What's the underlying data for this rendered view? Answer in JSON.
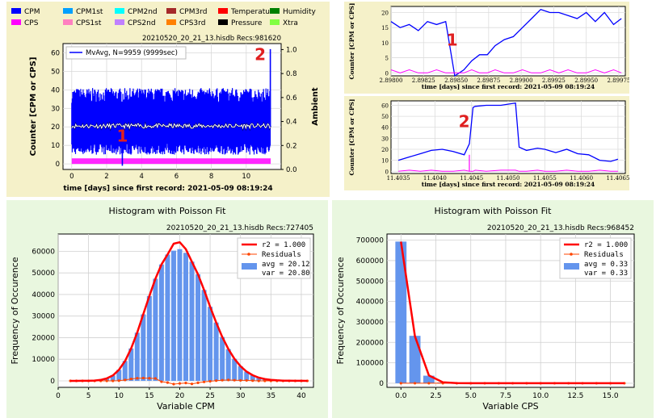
{
  "chart_data": [
    {
      "id": "time-series-main",
      "type": "line",
      "legend": [
        {
          "name": "CPM",
          "color": "#0000ff"
        },
        {
          "name": "CPM1st",
          "color": "#00a0ff"
        },
        {
          "name": "CPM2nd",
          "color": "#00ffff"
        },
        {
          "name": "CPM3rd",
          "color": "#a52a2a"
        },
        {
          "name": "Temperature",
          "color": "#ff0000"
        },
        {
          "name": "Humidity",
          "color": "#008000"
        },
        {
          "name": "CPS",
          "color": "#ff00ff"
        },
        {
          "name": "CPS1st",
          "color": "#ff80c0"
        },
        {
          "name": "CPS2nd",
          "color": "#c080ff"
        },
        {
          "name": "CPS3rd",
          "color": "#ff8000"
        },
        {
          "name": "Pressure",
          "color": "#000000"
        },
        {
          "name": "Xtra",
          "color": "#80ff40"
        }
      ],
      "subtitle": "20210520_20_21_13.hisdb   Recs:981620",
      "inner_legend": "MvAvg, N=9959 (9999sec)",
      "xlabel": "time [days] since first record: 2021-05-09 08:19:24",
      "ylabel": "Counter  [CPM or CPS]",
      "y2label": "Ambient",
      "xlim": [
        -0.5,
        12
      ],
      "ylim": [
        -3,
        65
      ],
      "y2lim": [
        0,
        1.05
      ],
      "xticks": [
        "0",
        "2",
        "4",
        "6",
        "8",
        "10"
      ],
      "yticks": [
        "0",
        "10",
        "20",
        "30",
        "40",
        "50",
        "60"
      ],
      "y2ticks": [
        "0.0",
        "0.2",
        "0.4",
        "0.6",
        "0.8",
        "1.0"
      ],
      "cpm_band": {
        "low": 5,
        "high": 37,
        "mean": 20
      },
      "moving_average": {
        "mean": 20.5
      },
      "cps_band": {
        "low": 0,
        "high": 3
      },
      "spikes": [
        {
          "x": 2.9,
          "y": -1
        },
        {
          "x": 11.38,
          "y": 62
        }
      ],
      "markers": [
        {
          "label": "1",
          "x": 2.9,
          "y": 12
        },
        {
          "label": "2",
          "x": 10.8,
          "y": 56
        }
      ],
      "colors": {
        "cpm": "#0000ff",
        "cps": "#ff00ff",
        "mvavg": "#ffffff",
        "marker": "#e02020"
      }
    },
    {
      "id": "zoom-1",
      "type": "line",
      "ylabel": "Counter  [CPM or CPS]",
      "xlabel": "time [days] since first record: 2021-05-09 08:19:24",
      "xlim": [
        2.898,
        2.8998
      ],
      "ylim": [
        -1,
        22
      ],
      "xticks": [
        "2.89800",
        "2.89825",
        "2.89850",
        "2.89875",
        "2.89900",
        "2.89925",
        "2.89950",
        "2.89975"
      ],
      "yticks": [
        "0",
        "5",
        "10",
        "15",
        "20"
      ],
      "cpm_x": [
        2.898,
        2.89807,
        2.89814,
        2.89821,
        2.89828,
        2.89835,
        2.89842,
        2.89849,
        2.89856,
        2.89862,
        2.89868,
        2.89874,
        2.8988,
        2.89887,
        2.89894,
        2.89901,
        2.89908,
        2.89915,
        2.89922,
        2.89929,
        2.89936,
        2.89943,
        2.8995,
        2.89957,
        2.89964,
        2.89971,
        2.89977
      ],
      "cpm_y": [
        17,
        15,
        16,
        14,
        17,
        16,
        17,
        -1,
        1,
        4,
        6,
        6,
        9,
        11,
        12,
        15,
        18,
        21,
        20,
        20,
        19,
        18,
        20,
        17,
        20,
        16,
        18
      ],
      "cps_y": [
        1,
        0,
        1,
        0,
        0,
        1,
        0,
        0,
        0,
        1,
        0,
        0,
        1,
        0,
        0,
        1,
        0,
        0,
        1,
        0,
        1,
        0,
        0,
        1,
        0,
        1,
        0
      ],
      "marker": {
        "label": "1",
        "x": 2.89847,
        "y": 9
      }
    },
    {
      "id": "zoom-2",
      "type": "line",
      "ylabel": "Counter  [CPM or CPS]",
      "xlabel": "time [days] since first record: 2021-05-09 08:19:24",
      "xlim": [
        11.4034,
        11.4066
      ],
      "ylim": [
        -2,
        64
      ],
      "xticks": [
        "11.4035",
        "11.4040",
        "11.4045",
        "11.4050",
        "11.4055",
        "11.4060",
        "11.4065"
      ],
      "yticks": [
        "0",
        "10",
        "20",
        "30",
        "40",
        "50",
        "60"
      ],
      "cpm_x": [
        11.4035,
        11.40365,
        11.4038,
        11.40395,
        11.4041,
        11.40425,
        11.4044,
        11.40447,
        11.40452,
        11.40455,
        11.4047,
        11.4049,
        11.4051,
        11.40515,
        11.40525,
        11.4054,
        11.4055,
        11.40565,
        11.4058,
        11.40595,
        11.4061,
        11.40625,
        11.4064,
        11.4065
      ],
      "cpm_y": [
        10,
        13,
        16,
        19,
        20,
        18,
        15,
        25,
        58,
        59,
        60,
        60,
        62,
        22,
        19,
        21,
        20,
        17,
        20,
        16,
        15,
        10,
        9,
        11
      ],
      "cps_y": [
        0,
        1,
        0,
        1,
        0,
        0,
        1,
        0,
        0,
        1,
        0,
        1,
        1,
        0,
        0,
        1,
        0,
        0,
        1,
        0,
        0,
        1,
        0,
        0
      ],
      "cps_spike": {
        "x": 11.40447,
        "y": 15
      },
      "marker": {
        "label": "2",
        "x": 11.4044,
        "y": 40
      }
    },
    {
      "id": "hist-cpm",
      "type": "bar",
      "title": "Histogram with Poisson Fit",
      "subtitle": "20210520_20_21_13.hisdb   Recs:727405",
      "xlabel": "Variable CPM",
      "ylabel": "Frequency of Occurence",
      "xlim": [
        0,
        42
      ],
      "ylim": [
        -3000,
        68000
      ],
      "xticks": [
        0,
        5,
        10,
        15,
        20,
        25,
        30,
        35,
        40
      ],
      "yticks": [
        0,
        10000,
        20000,
        30000,
        40000,
        50000,
        60000
      ],
      "x": [
        2,
        3,
        4,
        5,
        6,
        7,
        8,
        9,
        10,
        11,
        12,
        13,
        14,
        15,
        16,
        17,
        18,
        19,
        20,
        21,
        22,
        23,
        24,
        25,
        26,
        27,
        28,
        29,
        30,
        31,
        32,
        33,
        34,
        35,
        36,
        37,
        38,
        39,
        40,
        41
      ],
      "values": [
        0,
        0,
        10,
        40,
        150,
        450,
        1130,
        2500,
        5100,
        9200,
        15000,
        22300,
        30800,
        39300,
        47300,
        53900,
        58500,
        60300,
        61000,
        59300,
        55200,
        49400,
        42100,
        34300,
        27000,
        20300,
        14700,
        10200,
        6800,
        4300,
        2600,
        1500,
        840,
        460,
        240,
        120,
        60,
        30,
        14,
        6
      ],
      "fit": [
        0,
        0,
        10,
        40,
        150,
        450,
        1130,
        2500,
        5100,
        9200,
        15000,
        22300,
        30800,
        39300,
        47300,
        53900,
        58500,
        63500,
        64200,
        61000,
        55200,
        49400,
        42100,
        34300,
        27000,
        20300,
        14700,
        10200,
        6800,
        4300,
        2600,
        1500,
        840,
        460,
        240,
        120,
        60,
        30,
        14,
        6
      ],
      "residuals": [
        0,
        0,
        0,
        0,
        0,
        0,
        0,
        0,
        100,
        400,
        900,
        1200,
        1300,
        1200,
        1100,
        -400,
        -800,
        -1500,
        -1200,
        -1000,
        -1400,
        -900,
        -500,
        -200,
        100,
        300,
        400,
        300,
        200,
        200,
        100,
        0,
        0,
        0,
        0,
        0,
        0,
        0,
        0,
        0
      ],
      "legend": [
        "r2  = 1.000",
        "Residuals",
        "avg = 20.12",
        "var = 20.80"
      ],
      "colors": {
        "bar": "#6495ed",
        "fit": "#ff0000",
        "residuals": "#ff4500"
      }
    },
    {
      "id": "hist-cps",
      "type": "bar",
      "title": "Histogram with Poisson Fit",
      "subtitle": "20210520_20_21_13.hisdb   Recs:968452",
      "xlabel": "Variable CPS",
      "ylabel": "Frequency of Occurence",
      "xlim": [
        -1,
        16.7
      ],
      "ylim": [
        -20000,
        730000
      ],
      "xticks": [
        "0.0",
        "2.5",
        "5.0",
        "7.5",
        "10.0",
        "12.5",
        "15.0"
      ],
      "xtick_values": [
        0,
        2.5,
        5,
        7.5,
        10,
        12.5,
        15
      ],
      "yticks": [
        "0",
        "100000",
        "200000",
        "300000",
        "400000",
        "500000",
        "600000",
        "700000"
      ],
      "x": [
        0,
        1,
        2,
        3,
        4,
        5,
        6,
        7,
        8,
        9,
        10,
        11,
        12,
        13,
        14,
        15,
        16
      ],
      "values": [
        693000,
        232000,
        37000,
        4200,
        350,
        20,
        0,
        0,
        0,
        0,
        0,
        0,
        0,
        0,
        0,
        0,
        0
      ],
      "fit": [
        693000,
        230000,
        38000,
        4300,
        350,
        20,
        0,
        0,
        0,
        0,
        0,
        0,
        0,
        0,
        0,
        0,
        0
      ],
      "residuals": [
        0,
        0,
        0,
        0,
        0,
        0,
        0,
        0,
        0,
        0,
        0,
        0,
        0,
        0,
        0,
        0,
        0
      ],
      "legend": [
        "r2  = 1.000",
        "Residuals",
        "avg = 0.33",
        "var = 0.33"
      ],
      "colors": {
        "bar": "#6495ed",
        "fit": "#ff0000",
        "residuals": "#ff4500"
      }
    }
  ]
}
